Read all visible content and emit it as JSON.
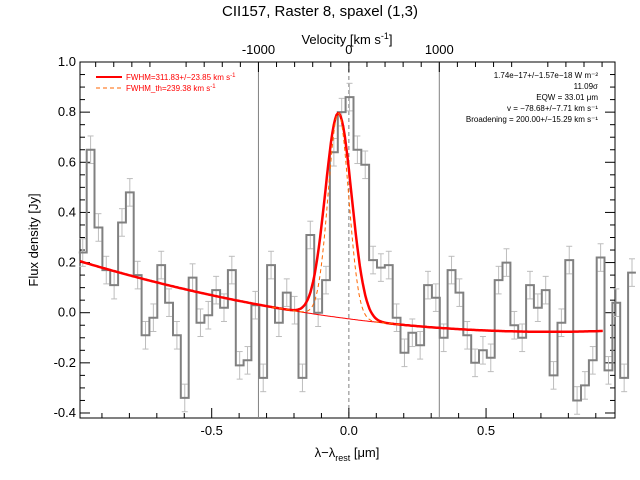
{
  "chart_data": {
    "type": "line",
    "title": "CII157, Raster 8, spaxel (1,3)",
    "xlabel": "λ−λ",
    "xlabel_sub": "rest",
    "xlabel_unit": " [μm]",
    "ylabel": "Flux density [Jy]",
    "top_xlabel": "Velocity [km s",
    "top_xlabel_sup": "-1",
    "top_xlabel_end": "]",
    "xlim": [
      -0.98,
      0.97
    ],
    "ylim": [
      -0.42,
      1.0
    ],
    "x_ticks": [
      -0.5,
      0.0,
      0.5
    ],
    "x_tick_labels": [
      "-0.5",
      "0.0",
      "0.5"
    ],
    "y_ticks": [
      -0.4,
      -0.2,
      0.0,
      0.2,
      0.4,
      0.6,
      0.8,
      1.0
    ],
    "y_tick_labels": [
      "-0.4",
      "-0.2",
      "0.0",
      "0.2",
      "0.4",
      "0.6",
      "0.8",
      "1.0"
    ],
    "top_ticks_um": [
      -0.3296,
      0.0,
      0.3296
    ],
    "top_tick_labels": [
      "-1000",
      "0",
      "1000"
    ],
    "vertical_lines": [
      -0.3296,
      0.0,
      0.3296
    ],
    "legend": [
      {
        "label": "FWHM=311.83+/−23.85 km s",
        "sup": "-1",
        "style": "solid"
      },
      {
        "label": "FWHM_th=239.38 km s",
        "sup": "-1",
        "style": "dashed"
      }
    ],
    "annotations": [
      "1.74e−17+/−1.57e−18 W m⁻²",
      "11.09σ",
      "EQW = 33.01 μm",
      "v = −78.68+/−7.71 km s⁻¹",
      "Broadening = 200.00+/−15.29 km s⁻¹"
    ],
    "colors": {
      "fit": "#ff0000",
      "thermal": "#ff6600",
      "data": "#808080",
      "guides": "#808080"
    },
    "spectrum": {
      "x_start": -0.97,
      "step": 0.0286,
      "values": [
        0.24,
        0.65,
        0.34,
        0.17,
        0.11,
        0.36,
        0.48,
        0.15,
        -0.09,
        -0.02,
        0.19,
        0.04,
        -0.09,
        -0.34,
        0.14,
        -0.04,
        -0.01,
        0.09,
        0.02,
        0.17,
        -0.21,
        -0.19,
        0.03,
        -0.26,
        0.19,
        -0.04,
        0.08,
        0.01,
        -0.26,
        0.31,
        0.0,
        0.13,
        0.64,
        0.8,
        0.86,
        0.65,
        0.59,
        0.21,
        0.18,
        0.19,
        -0.02,
        -0.16,
        -0.08,
        -0.13,
        0.11,
        0.06,
        -0.1,
        0.17,
        0.08,
        -0.09,
        -0.2,
        -0.15,
        -0.18,
        0.13,
        0.2,
        -0.05,
        -0.1,
        0.11,
        0.02,
        0.09,
        -0.25,
        -0.04,
        0.21,
        -0.35,
        -0.29,
        -0.19,
        0.22,
        -0.23,
        0.04,
        -0.26,
        0.16
      ],
      "error": 0.055
    },
    "fit": {
      "peak_x": -0.038,
      "line_amplitude": 0.815,
      "line_sigma": 0.048,
      "thermal_sigma": 0.037,
      "baseline_quadratic_coeffs": [
        -0.0245,
        -0.1407,
        0.0957
      ],
      "baseline_x_range": [
        -0.98,
        0.93
      ]
    }
  }
}
